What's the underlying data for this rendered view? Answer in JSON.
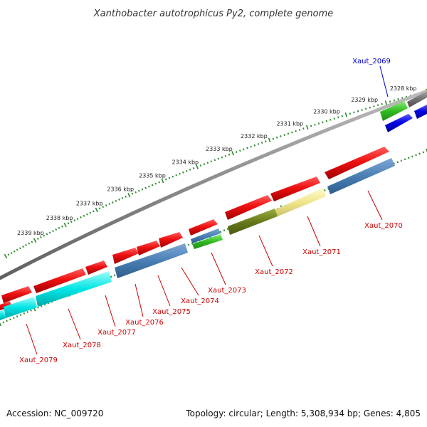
{
  "title": "Xanthobacter autotrophicus Py2, complete genome",
  "footer": {
    "accession": "Accession: NC_009720",
    "summary": "Topology: circular; Length: 5,308,934 bp; Genes: 4,805"
  },
  "colors": {
    "ruler": "#2a8a2a",
    "backbone": "#8a8a8a",
    "label_red": "#cc0000",
    "label_blue": "#0000cc"
  },
  "ruler_labels": [
    "2328 kbp",
    "2329 kbp",
    "2330 kbp",
    "2331 kbp",
    "2332 kbp",
    "2333 kbp",
    "2334 kbp",
    "2335 kbp",
    "2336 kbp",
    "2337 kbp",
    "2338 kbp",
    "2339 kbp"
  ],
  "genes": [
    {
      "label": "Xaut_2069",
      "color": "#0000cc"
    },
    {
      "label": "Xaut_2070",
      "color": "#cc0000"
    },
    {
      "label": "Xaut_2071",
      "color": "#cc0000"
    },
    {
      "label": "Xaut_2072",
      "color": "#cc0000"
    },
    {
      "label": "Xaut_2073",
      "color": "#cc0000"
    },
    {
      "label": "Xaut_2074",
      "color": "#cc0000"
    },
    {
      "label": "Xaut_2075",
      "color": "#cc0000"
    },
    {
      "label": "Xaut_2076",
      "color": "#cc0000"
    },
    {
      "label": "Xaut_2077",
      "color": "#cc0000"
    },
    {
      "label": "Xaut_2078",
      "color": "#cc0000"
    },
    {
      "label": "Xaut_2079",
      "color": "#cc0000"
    }
  ],
  "feature_colors": {
    "cds": "#e81010",
    "cds_dark": "#b40000",
    "rna_green": "#33bb22",
    "blue_ring": "#4a7fb5",
    "cyan_ring": "#00e5e5",
    "olive_ring": "#667a1a",
    "yellow_ring": "#f0e68c",
    "deep_blue": "#0000e0",
    "gray_feature": "#707070"
  }
}
